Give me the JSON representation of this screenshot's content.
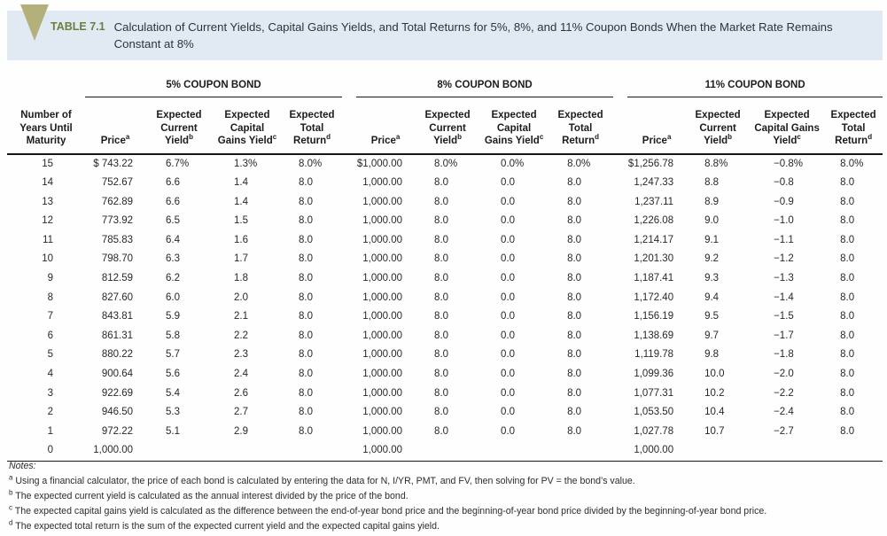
{
  "header": {
    "table_label": "TABLE 7.1",
    "title": "Calculation of Current Yields, Capital Gains Yields, and Total Returns for 5%, 8%, and 11% Coupon Bonds When the Market Rate Remains Constant at 8%"
  },
  "colors": {
    "band_background": "#e1eaf3",
    "triangle": "#b3b07b",
    "table_label_green": "#6e7c3e",
    "rule_black": "#1a1a1a"
  },
  "table": {
    "maturity_header": [
      "Number of",
      "Years Until",
      "Maturity"
    ],
    "groups": [
      {
        "label": "5% COUPON BOND",
        "headers": [
          {
            "lines": [
              "Price"
            ],
            "sup": "a"
          },
          {
            "lines": [
              "Expected",
              "Current",
              "Yield"
            ],
            "sup": "b"
          },
          {
            "lines": [
              "Expected",
              "Capital",
              "Gains Yield"
            ],
            "sup": "c"
          },
          {
            "lines": [
              "Expected",
              "Total",
              "Return"
            ],
            "sup": "d"
          }
        ]
      },
      {
        "label": "8% COUPON BOND",
        "headers": [
          {
            "lines": [
              "Price"
            ],
            "sup": "a"
          },
          {
            "lines": [
              "Expected",
              "Current",
              "Yield"
            ],
            "sup": "b"
          },
          {
            "lines": [
              "Expected",
              "Capital",
              "Gains Yield"
            ],
            "sup": "c"
          },
          {
            "lines": [
              "Expected",
              "Total",
              "Return"
            ],
            "sup": "d"
          }
        ]
      },
      {
        "label": "11% COUPON BOND",
        "headers": [
          {
            "lines": [
              "Price"
            ],
            "sup": "a"
          },
          {
            "lines": [
              "Expected",
              "Current",
              "Yield"
            ],
            "sup": "b"
          },
          {
            "lines": [
              "Expected",
              "Capital Gains",
              "Yield"
            ],
            "sup": "c"
          },
          {
            "lines": [
              "Expected",
              "Total",
              "Return"
            ],
            "sup": "d"
          }
        ]
      }
    ],
    "rows": [
      {
        "maturity": "15",
        "cells": [
          [
            "$ 743.22",
            "6.7%",
            "1.3%",
            "8.0%"
          ],
          [
            "$1,000.00",
            "8.0%",
            "0.0%",
            "8.0%"
          ],
          [
            "$1,256.78",
            "8.8%",
            "−0.8%",
            "8.0%"
          ]
        ]
      },
      {
        "maturity": "14",
        "cells": [
          [
            "752.67",
            "6.6",
            "1.4",
            "8.0"
          ],
          [
            "1,000.00",
            "8.0",
            "0.0",
            "8.0"
          ],
          [
            "1,247.33",
            "8.8",
            "−0.8",
            "8.0"
          ]
        ]
      },
      {
        "maturity": "13",
        "cells": [
          [
            "762.89",
            "6.6",
            "1.4",
            "8.0"
          ],
          [
            "1,000.00",
            "8.0",
            "0.0",
            "8.0"
          ],
          [
            "1,237.11",
            "8.9",
            "−0.9",
            "8.0"
          ]
        ]
      },
      {
        "maturity": "12",
        "cells": [
          [
            "773.92",
            "6.5",
            "1.5",
            "8.0"
          ],
          [
            "1,000.00",
            "8.0",
            "0.0",
            "8.0"
          ],
          [
            "1,226.08",
            "9.0",
            "−1.0",
            "8.0"
          ]
        ]
      },
      {
        "maturity": "11",
        "cells": [
          [
            "785.83",
            "6.4",
            "1.6",
            "8.0"
          ],
          [
            "1,000.00",
            "8.0",
            "0.0",
            "8.0"
          ],
          [
            "1,214.17",
            "9.1",
            "−1.1",
            "8.0"
          ]
        ]
      },
      {
        "maturity": "10",
        "cells": [
          [
            "798.70",
            "6.3",
            "1.7",
            "8.0"
          ],
          [
            "1,000.00",
            "8.0",
            "0.0",
            "8.0"
          ],
          [
            "1,201.30",
            "9.2",
            "−1.2",
            "8.0"
          ]
        ]
      },
      {
        "maturity": "9",
        "cells": [
          [
            "812.59",
            "6.2",
            "1.8",
            "8.0"
          ],
          [
            "1,000.00",
            "8.0",
            "0.0",
            "8.0"
          ],
          [
            "1,187.41",
            "9.3",
            "−1.3",
            "8.0"
          ]
        ]
      },
      {
        "maturity": "8",
        "cells": [
          [
            "827.60",
            "6.0",
            "2.0",
            "8.0"
          ],
          [
            "1,000.00",
            "8.0",
            "0.0",
            "8.0"
          ],
          [
            "1,172.40",
            "9.4",
            "−1.4",
            "8.0"
          ]
        ]
      },
      {
        "maturity": "7",
        "cells": [
          [
            "843.81",
            "5.9",
            "2.1",
            "8.0"
          ],
          [
            "1,000.00",
            "8.0",
            "0.0",
            "8.0"
          ],
          [
            "1,156.19",
            "9.5",
            "−1.5",
            "8.0"
          ]
        ]
      },
      {
        "maturity": "6",
        "cells": [
          [
            "861.31",
            "5.8",
            "2.2",
            "8.0"
          ],
          [
            "1,000.00",
            "8.0",
            "0.0",
            "8.0"
          ],
          [
            "1,138.69",
            "9.7",
            "−1.7",
            "8.0"
          ]
        ]
      },
      {
        "maturity": "5",
        "cells": [
          [
            "880.22",
            "5.7",
            "2.3",
            "8.0"
          ],
          [
            "1,000.00",
            "8.0",
            "0.0",
            "8.0"
          ],
          [
            "1,119.78",
            "9.8",
            "−1.8",
            "8.0"
          ]
        ]
      },
      {
        "maturity": "4",
        "cells": [
          [
            "900.64",
            "5.6",
            "2.4",
            "8.0"
          ],
          [
            "1,000.00",
            "8.0",
            "0.0",
            "8.0"
          ],
          [
            "1,099.36",
            "10.0",
            "−2.0",
            "8.0"
          ]
        ]
      },
      {
        "maturity": "3",
        "cells": [
          [
            "922.69",
            "5.4",
            "2.6",
            "8.0"
          ],
          [
            "1,000.00",
            "8.0",
            "0.0",
            "8.0"
          ],
          [
            "1,077.31",
            "10.2",
            "−2.2",
            "8.0"
          ]
        ]
      },
      {
        "maturity": "2",
        "cells": [
          [
            "946.50",
            "5.3",
            "2.7",
            "8.0"
          ],
          [
            "1,000.00",
            "8.0",
            "0.0",
            "8.0"
          ],
          [
            "1,053.50",
            "10.4",
            "−2.4",
            "8.0"
          ]
        ]
      },
      {
        "maturity": "1",
        "cells": [
          [
            "972.22",
            "5.1",
            "2.9",
            "8.0"
          ],
          [
            "1,000.00",
            "8.0",
            "0.0",
            "8.0"
          ],
          [
            "1,027.78",
            "10.7",
            "−2.7",
            "8.0"
          ]
        ]
      },
      {
        "maturity": "0",
        "cells": [
          [
            "1,000.00",
            "",
            "",
            ""
          ],
          [
            "1,000.00",
            "",
            "",
            ""
          ],
          [
            "1,000.00",
            "",
            "",
            ""
          ]
        ]
      }
    ]
  },
  "notes": {
    "label": "Notes:",
    "items": [
      {
        "sup": "a",
        "text": "Using a financial calculator, the price of each bond is calculated by entering the data for N, I/YR, PMT, and FV, then solving for PV = the bond’s value."
      },
      {
        "sup": "b",
        "text": "The expected current yield is calculated as the annual interest divided by the price of the bond."
      },
      {
        "sup": "c",
        "text": "The expected capital gains yield is calculated as the difference between the end-of-year bond price and the beginning-of-year bond price divided by the beginning-of-year bond price."
      },
      {
        "sup": "d",
        "text": "The expected total return is the sum of the expected current yield and the expected capital gains yield."
      }
    ]
  }
}
